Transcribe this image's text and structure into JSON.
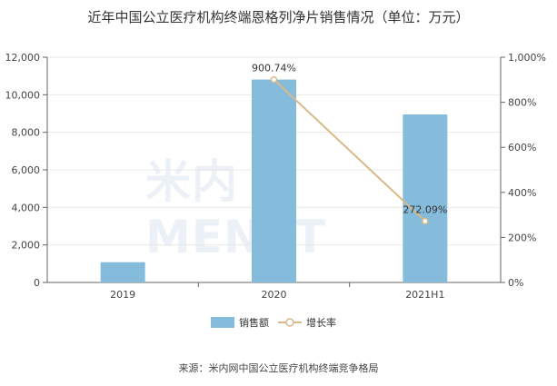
{
  "chart_data": {
    "type": "bar",
    "title": "近年中国公立医疗机构终端恩格列净片销售情况（单位：万元）",
    "categories": [
      "2019",
      "2020",
      "2021H1"
    ],
    "series": [
      {
        "name": "销售额",
        "type": "bar",
        "values": [
          1080,
          10810,
          8950
        ],
        "color": "#85bcdc"
      },
      {
        "name": "增长率",
        "type": "line",
        "axis": "right",
        "values": [
          null,
          900.74,
          272.09
        ],
        "labels": [
          "",
          "900.74%",
          "272.09%"
        ],
        "color": "#d9b98a"
      }
    ],
    "y_left": {
      "min": 0,
      "max": 12000,
      "ticks": [
        "0",
        "2,000",
        "4,000",
        "6,000",
        "8,000",
        "10,000",
        "12,000"
      ]
    },
    "y_right": {
      "min": 0,
      "max": 1000,
      "ticks": [
        "0%",
        "200%",
        "400%",
        "600%",
        "800%",
        "1,000%"
      ]
    },
    "grid": true,
    "legend": "bottom-center",
    "watermark": "米内MENET",
    "source": "来源：米内网中国公立医疗机构终端竞争格局"
  }
}
